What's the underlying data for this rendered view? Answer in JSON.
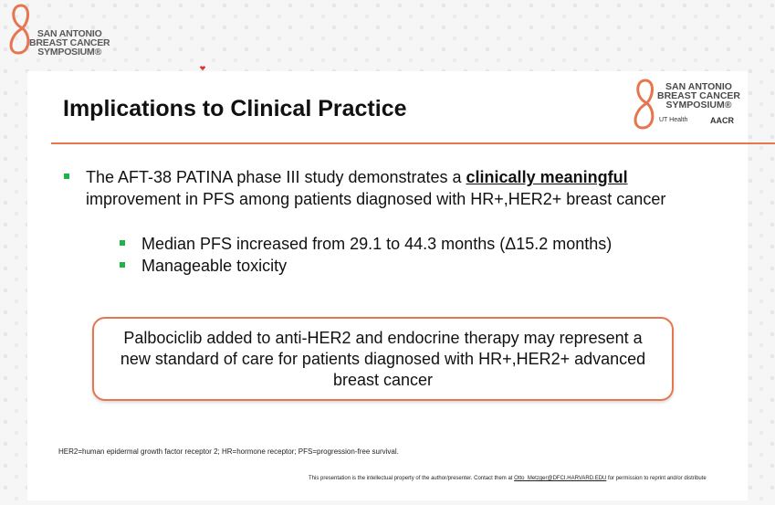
{
  "corner_logo": {
    "line1": "SAN ANTONIO",
    "line2": "BREAST CANCER",
    "line3": "SYMPOSIUM®"
  },
  "slide": {
    "title": "Implications to Clinical Practice",
    "logo": {
      "line1": "SAN ANTONIO",
      "line2": "BREAST CANCER",
      "line3": "SYMPOSIUM®",
      "ut_health": "UT Health",
      "aacr": "AACR"
    },
    "bullet": {
      "before": "The AFT-38 PATINA phase III study demonstrates a ",
      "emphasis": "clinically meaningful",
      "after": " improvement in PFS among patients diagnosed with HR+,HER2+ breast cancer"
    },
    "sub_bullets": [
      "Median PFS increased from 29.1 to 44.3 months (Δ15.2 months)",
      "Manageable toxicity"
    ],
    "callout": "Palbociclib added to anti-HER2 and endocrine therapy may represent a new standard of care for patients diagnosed with HR+,HER2+ advanced breast cancer",
    "footnote": "HER2=human epidermal growth factor receptor 2; HR=hormone receptor; PFS=progression-free survival.",
    "disclaimer": {
      "before": "This presentation is the intellectual property of the author/presenter. Contact them at ",
      "link": "Otto_Metzger@DFCI.HARVARD.EDU",
      "after": " for permission to reprint and/or distribute"
    }
  },
  "colors": {
    "accent": "#e6764f",
    "bullet": "#1fb34a"
  }
}
